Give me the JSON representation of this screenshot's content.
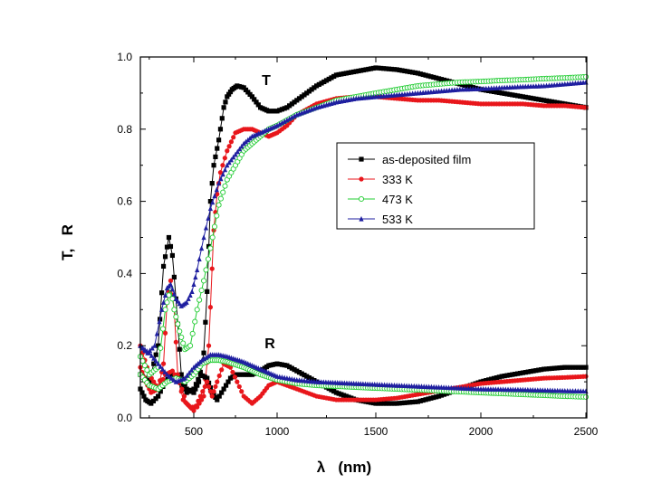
{
  "chart_data": {
    "type": "line",
    "title": "",
    "xlabel": "λ   (nm)",
    "ylabel": "T,   R",
    "xlim": [
      200,
      2500
    ],
    "ylim": [
      0.0,
      1.0
    ],
    "xticks": [
      500,
      1000,
      1500,
      2000,
      2500
    ],
    "xtick_labels": [
      "500",
      "1000",
      "1500",
      "2000",
      "2500"
    ],
    "yticks": [
      0.0,
      0.2,
      0.4,
      0.6,
      0.8,
      1.0
    ],
    "ytick_labels": [
      "0.0",
      "0.2",
      "0.4",
      "0.6",
      "0.8",
      "1.0"
    ],
    "grid": false,
    "legend_position": "center-right",
    "annotations": [
      {
        "text": "T",
        "x": 1000,
        "y": 0.93
      },
      {
        "text": "R",
        "x": 1000,
        "y": 0.2
      }
    ],
    "series": [
      {
        "name": "as-deposited film",
        "color": "#000000",
        "marker": "square",
        "group": "T",
        "x": [
          200,
          250,
          300,
          330,
          360,
          380,
          400,
          430,
          460,
          500,
          530,
          560,
          580,
          600,
          620,
          650,
          680,
          700,
          730,
          760,
          800,
          850,
          900,
          950,
          1000,
          1050,
          1100,
          1200,
          1300,
          1400,
          1500,
          1600,
          1700,
          1800,
          1900,
          2000,
          2100,
          2200,
          2300,
          2400,
          2500
        ],
        "y": [
          0.12,
          0.1,
          0.2,
          0.42,
          0.5,
          0.45,
          0.33,
          0.12,
          0.08,
          0.07,
          0.1,
          0.18,
          0.35,
          0.6,
          0.7,
          0.77,
          0.86,
          0.89,
          0.91,
          0.92,
          0.915,
          0.89,
          0.86,
          0.85,
          0.85,
          0.86,
          0.88,
          0.92,
          0.95,
          0.96,
          0.97,
          0.965,
          0.955,
          0.94,
          0.925,
          0.91,
          0.9,
          0.89,
          0.88,
          0.87,
          0.86
        ]
      },
      {
        "name": "333 K",
        "color": "#e8161b",
        "marker": "circle",
        "group": "T",
        "x": [
          200,
          250,
          300,
          330,
          350,
          370,
          390,
          410,
          440,
          480,
          520,
          560,
          590,
          620,
          640,
          660,
          700,
          750,
          800,
          850,
          900,
          950,
          1000,
          1050,
          1100,
          1200,
          1300,
          1400,
          1500,
          1600,
          1700,
          1800,
          1900,
          2000,
          2100,
          2200,
          2300,
          2400,
          2500
        ],
        "y": [
          0.2,
          0.12,
          0.08,
          0.15,
          0.32,
          0.38,
          0.3,
          0.12,
          0.05,
          0.03,
          0.03,
          0.06,
          0.2,
          0.52,
          0.62,
          0.68,
          0.74,
          0.79,
          0.8,
          0.8,
          0.79,
          0.78,
          0.79,
          0.81,
          0.84,
          0.87,
          0.885,
          0.89,
          0.89,
          0.885,
          0.88,
          0.88,
          0.875,
          0.87,
          0.87,
          0.87,
          0.865,
          0.865,
          0.86
        ]
      },
      {
        "name": "473 K",
        "color": "#22cc33",
        "marker": "open-circle",
        "group": "T",
        "x": [
          200,
          250,
          300,
          340,
          370,
          390,
          420,
          450,
          480,
          520,
          560,
          600,
          650,
          700,
          750,
          800,
          850,
          900,
          950,
          1000,
          1100,
          1200,
          1300,
          1400,
          1500,
          1600,
          1700,
          1800,
          1900,
          2000,
          2100,
          2200,
          2300,
          2400,
          2500
        ],
        "y": [
          0.17,
          0.12,
          0.14,
          0.3,
          0.36,
          0.3,
          0.24,
          0.19,
          0.2,
          0.3,
          0.38,
          0.47,
          0.59,
          0.66,
          0.7,
          0.74,
          0.76,
          0.78,
          0.8,
          0.81,
          0.84,
          0.86,
          0.88,
          0.89,
          0.9,
          0.91,
          0.92,
          0.925,
          0.93,
          0.932,
          0.935,
          0.937,
          0.94,
          0.942,
          0.945
        ]
      },
      {
        "name": "533 K",
        "color": "#1f1fa0",
        "marker": "triangle",
        "group": "T",
        "x": [
          200,
          240,
          280,
          320,
          350,
          370,
          400,
          430,
          460,
          490,
          520,
          560,
          600,
          650,
          700,
          750,
          800,
          850,
          900,
          950,
          1000,
          1100,
          1200,
          1300,
          1400,
          1500,
          1600,
          1700,
          1800,
          1900,
          2000,
          2100,
          2200,
          2300,
          2400,
          2500
        ],
        "y": [
          0.2,
          0.18,
          0.2,
          0.3,
          0.36,
          0.37,
          0.33,
          0.31,
          0.32,
          0.35,
          0.41,
          0.5,
          0.58,
          0.65,
          0.7,
          0.73,
          0.76,
          0.78,
          0.79,
          0.8,
          0.81,
          0.84,
          0.86,
          0.875,
          0.885,
          0.89,
          0.895,
          0.9,
          0.905,
          0.91,
          0.912,
          0.915,
          0.918,
          0.92,
          0.925,
          0.93
        ]
      },
      {
        "name": "as-deposited film (R)",
        "color": "#000000",
        "marker": "square",
        "group": "R",
        "legend": false,
        "x": [
          200,
          230,
          260,
          300,
          340,
          380,
          420,
          460,
          500,
          540,
          580,
          610,
          640,
          680,
          720,
          760,
          800,
          850,
          900,
          950,
          1000,
          1050,
          1100,
          1200,
          1300,
          1400,
          1500,
          1600,
          1700,
          1800,
          1900,
          2000,
          2100,
          2200,
          2300,
          2400,
          2500
        ],
        "y": [
          0.08,
          0.05,
          0.04,
          0.06,
          0.1,
          0.12,
          0.1,
          0.07,
          0.08,
          0.12,
          0.11,
          0.07,
          0.05,
          0.08,
          0.11,
          0.12,
          0.12,
          0.12,
          0.13,
          0.145,
          0.15,
          0.145,
          0.13,
          0.1,
          0.07,
          0.05,
          0.04,
          0.04,
          0.045,
          0.06,
          0.08,
          0.1,
          0.115,
          0.125,
          0.135,
          0.14,
          0.14
        ]
      },
      {
        "name": "333 K (R)",
        "color": "#e8161b",
        "marker": "circle",
        "group": "R",
        "legend": false,
        "x": [
          200,
          230,
          260,
          300,
          340,
          380,
          420,
          460,
          500,
          540,
          580,
          610,
          640,
          680,
          720,
          760,
          800,
          850,
          900,
          950,
          1000,
          1100,
          1200,
          1300,
          1400,
          1500,
          1600,
          1700,
          1800,
          1900,
          2000,
          2100,
          2200,
          2300,
          2400,
          2500
        ],
        "y": [
          0.14,
          0.1,
          0.07,
          0.08,
          0.12,
          0.13,
          0.1,
          0.04,
          0.02,
          0.06,
          0.1,
          0.06,
          0.1,
          0.15,
          0.14,
          0.1,
          0.06,
          0.04,
          0.06,
          0.09,
          0.1,
          0.08,
          0.06,
          0.05,
          0.05,
          0.05,
          0.055,
          0.065,
          0.075,
          0.085,
          0.095,
          0.1,
          0.105,
          0.11,
          0.112,
          0.115
        ]
      },
      {
        "name": "473 K (R)",
        "color": "#22cc33",
        "marker": "open-circle",
        "group": "R",
        "legend": false,
        "x": [
          200,
          250,
          300,
          350,
          400,
          450,
          500,
          550,
          600,
          650,
          700,
          800,
          900,
          1000,
          1100,
          1200,
          1400,
          1600,
          1800,
          2000,
          2200,
          2400,
          2500
        ],
        "y": [
          0.12,
          0.09,
          0.08,
          0.1,
          0.11,
          0.1,
          0.12,
          0.15,
          0.16,
          0.16,
          0.155,
          0.14,
          0.12,
          0.105,
          0.095,
          0.09,
          0.085,
          0.08,
          0.075,
          0.07,
          0.065,
          0.06,
          0.058
        ]
      },
      {
        "name": "533 K (R)",
        "color": "#1f1fa0",
        "marker": "triangle",
        "group": "R",
        "legend": false,
        "x": [
          200,
          250,
          300,
          350,
          400,
          450,
          500,
          550,
          600,
          650,
          700,
          800,
          900,
          1000,
          1100,
          1200,
          1400,
          1600,
          1800,
          2000,
          2200,
          2400,
          2500
        ],
        "y": [
          0.2,
          0.18,
          0.15,
          0.12,
          0.1,
          0.11,
          0.14,
          0.16,
          0.175,
          0.175,
          0.17,
          0.155,
          0.135,
          0.115,
          0.105,
          0.1,
          0.095,
          0.09,
          0.085,
          0.08,
          0.078,
          0.075,
          0.074
        ]
      }
    ]
  }
}
